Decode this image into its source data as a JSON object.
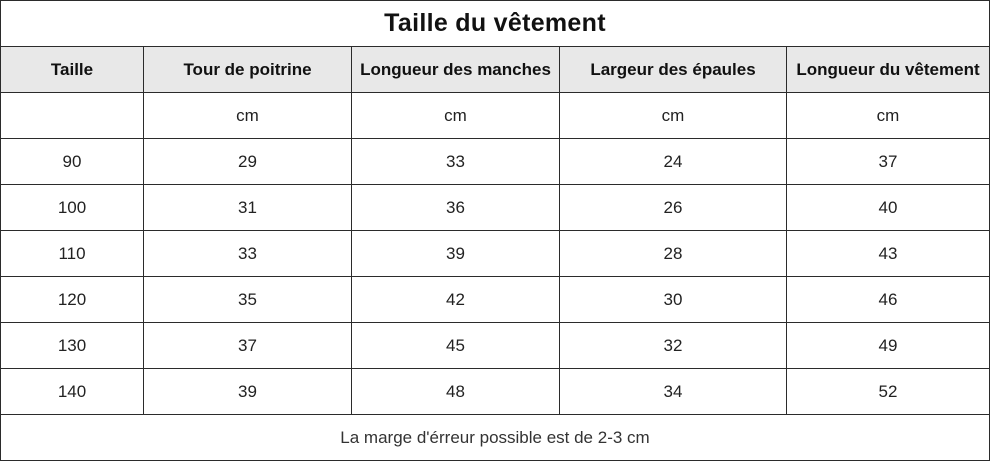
{
  "table": {
    "title": "Taille du vêtement",
    "headers": [
      "Taille",
      "Tour de poitrine",
      "Longueur des manches",
      "Largeur des épaules",
      "Longueur du vêtement"
    ],
    "units": [
      "",
      "cm",
      "cm",
      "cm",
      "cm"
    ],
    "rows": [
      [
        "90",
        "29",
        "33",
        "24",
        "37"
      ],
      [
        "100",
        "31",
        "36",
        "26",
        "40"
      ],
      [
        "110",
        "33",
        "39",
        "28",
        "43"
      ],
      [
        "120",
        "35",
        "42",
        "30",
        "46"
      ],
      [
        "130",
        "37",
        "45",
        "32",
        "49"
      ],
      [
        "140",
        "39",
        "48",
        "34",
        "52"
      ]
    ],
    "note": "La marge d'érreur possible est de 2-3 cm"
  }
}
